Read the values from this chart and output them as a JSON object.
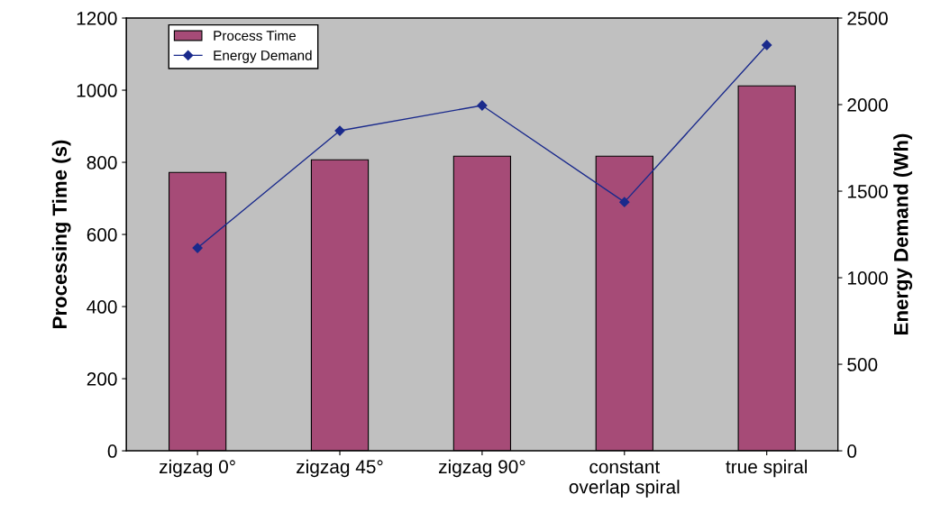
{
  "chart_data": {
    "type": "bar",
    "ylabel": "Processing Time (s)",
    "y2label": "Energy Demand (Wh)",
    "categories": [
      "zigzag 0°",
      "zigzag 45°",
      "zigzag 90°",
      "constant\noverlap spiral",
      "true spiral"
    ],
    "series": [
      {
        "name": "Process Time",
        "color": "#a64b77",
        "values": [
          772,
          807,
          817,
          817,
          1012
        ]
      },
      {
        "name": "Energy Demand",
        "type": "line",
        "axis": "y2",
        "color": "#1a2a8c",
        "marker": "diamond",
        "values": [
          1172,
          1849,
          1995,
          1437,
          2344
        ]
      }
    ],
    "ylim": [
      0,
      1200
    ],
    "yticks": [
      0,
      200,
      400,
      600,
      800,
      1000,
      1200
    ],
    "y2lim": [
      0,
      2500
    ],
    "y2ticks": [
      0,
      500,
      1000,
      1500,
      2000,
      2500
    ],
    "grid": false,
    "legend": "top left"
  }
}
